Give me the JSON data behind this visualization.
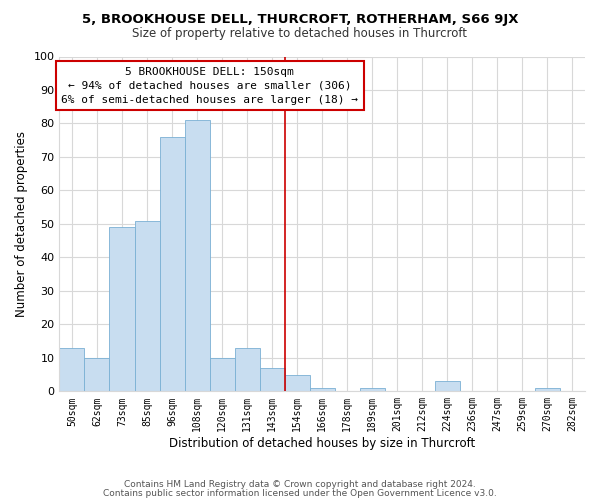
{
  "title": "5, BROOKHOUSE DELL, THURCROFT, ROTHERHAM, S66 9JX",
  "subtitle": "Size of property relative to detached houses in Thurcroft",
  "xlabel": "Distribution of detached houses by size in Thurcroft",
  "ylabel": "Number of detached properties",
  "bar_color": "#c8ddf0",
  "bar_edge_color": "#7ab0d4",
  "categories": [
    "50sqm",
    "62sqm",
    "73sqm",
    "85sqm",
    "96sqm",
    "108sqm",
    "120sqm",
    "131sqm",
    "143sqm",
    "154sqm",
    "166sqm",
    "178sqm",
    "189sqm",
    "201sqm",
    "212sqm",
    "224sqm",
    "236sqm",
    "247sqm",
    "259sqm",
    "270sqm",
    "282sqm"
  ],
  "values": [
    13,
    10,
    49,
    51,
    76,
    81,
    10,
    13,
    7,
    5,
    1,
    0,
    1,
    0,
    0,
    3,
    0,
    0,
    0,
    1,
    0
  ],
  "vline_pos": 8.5,
  "vline_color": "#cc0000",
  "annotation_title": "5 BROOKHOUSE DELL: 150sqm",
  "annotation_line1": "← 94% of detached houses are smaller (306)",
  "annotation_line2": "6% of semi-detached houses are larger (18) →",
  "annotation_box_color": "#ffffff",
  "annotation_box_edge_color": "#cc0000",
  "ylim": [
    0,
    100
  ],
  "yticks": [
    0,
    10,
    20,
    30,
    40,
    50,
    60,
    70,
    80,
    90,
    100
  ],
  "footer1": "Contains HM Land Registry data © Crown copyright and database right 2024.",
  "footer2": "Contains public sector information licensed under the Open Government Licence v3.0.",
  "background_color": "#ffffff",
  "grid_color": "#d8d8d8"
}
